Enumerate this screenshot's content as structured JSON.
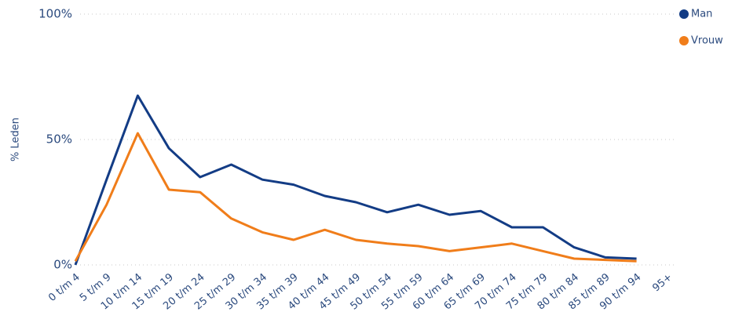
{
  "chart_data": {
    "type": "line",
    "y_label": "% Leden",
    "categories": [
      "0 t/m 4",
      "5 t/m 9",
      "10 t/m 14",
      "15 t/m 19",
      "20 t/m 24",
      "25 t/m 29",
      "30 t/m 34",
      "35 t/m 39",
      "40 t/m 44",
      "45 t/m 49",
      "50 t/m 54",
      "55 t/m 59",
      "60 t/m 64",
      "65 t/m 69",
      "70 t/m 74",
      "75 t/m 79",
      "80 t/m 84",
      "85 t/m 89",
      "90 t/m 94",
      "95+"
    ],
    "series": [
      {
        "name": "Man",
        "color": "#133c85",
        "values": [
          0,
          34,
          67.5,
          46.5,
          35,
          40,
          34,
          32,
          27.5,
          25,
          21,
          24,
          20,
          21.5,
          15,
          15,
          7,
          3,
          2.5,
          null
        ]
      },
      {
        "name": "Vrouw",
        "color": "#f07d1a",
        "values": [
          1.5,
          24,
          52.5,
          30,
          29,
          18.5,
          13,
          10,
          14,
          10,
          8.5,
          7.5,
          5.5,
          7,
          8.5,
          5.5,
          2.5,
          2,
          1.5,
          null
        ]
      }
    ],
    "ylim": [
      0,
      100
    ],
    "yticks": [
      {
        "value": 0,
        "label": "0%"
      },
      {
        "value": 50,
        "label": "50%"
      },
      {
        "value": 100,
        "label": "100%"
      }
    ],
    "grid": true,
    "legend": "top-right"
  }
}
